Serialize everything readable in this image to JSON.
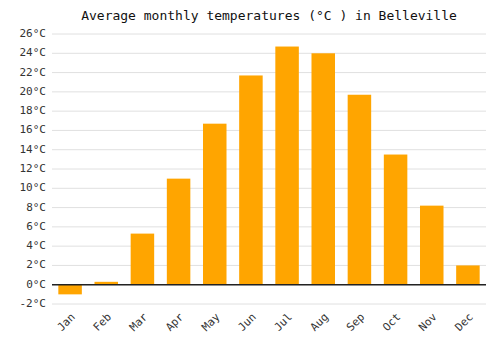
{
  "chart_data": {
    "type": "bar",
    "title": "Average monthly temperatures (°C ) in Belleville",
    "categories": [
      "Jan",
      "Feb",
      "Mar",
      "Apr",
      "May",
      "Jun",
      "Jul",
      "Aug",
      "Sep",
      "Oct",
      "Nov",
      "Dec"
    ],
    "values": [
      -1.0,
      0.3,
      5.3,
      11.0,
      16.7,
      21.7,
      24.7,
      24.0,
      19.7,
      13.5,
      8.2,
      2.0
    ],
    "color": "#FFA500",
    "ylim": [
      -2,
      26
    ],
    "yticks": [
      {
        "value": -2,
        "label": "-2°C"
      },
      {
        "value": 0,
        "label": "0°C"
      },
      {
        "value": 2,
        "label": "2°C"
      },
      {
        "value": 4,
        "label": "4°C"
      },
      {
        "value": 6,
        "label": "6°C"
      },
      {
        "value": 8,
        "label": "8°C"
      },
      {
        "value": 10,
        "label": "10°C"
      },
      {
        "value": 12,
        "label": "12°C"
      },
      {
        "value": 14,
        "label": "14°C"
      },
      {
        "value": 16,
        "label": "16°C"
      },
      {
        "value": 18,
        "label": "18°C"
      },
      {
        "value": 20,
        "label": "20°C"
      },
      {
        "value": 22,
        "label": "22°C"
      },
      {
        "value": 24,
        "label": "24°C"
      },
      {
        "value": 26,
        "label": "26°C"
      }
    ],
    "grid": true
  }
}
